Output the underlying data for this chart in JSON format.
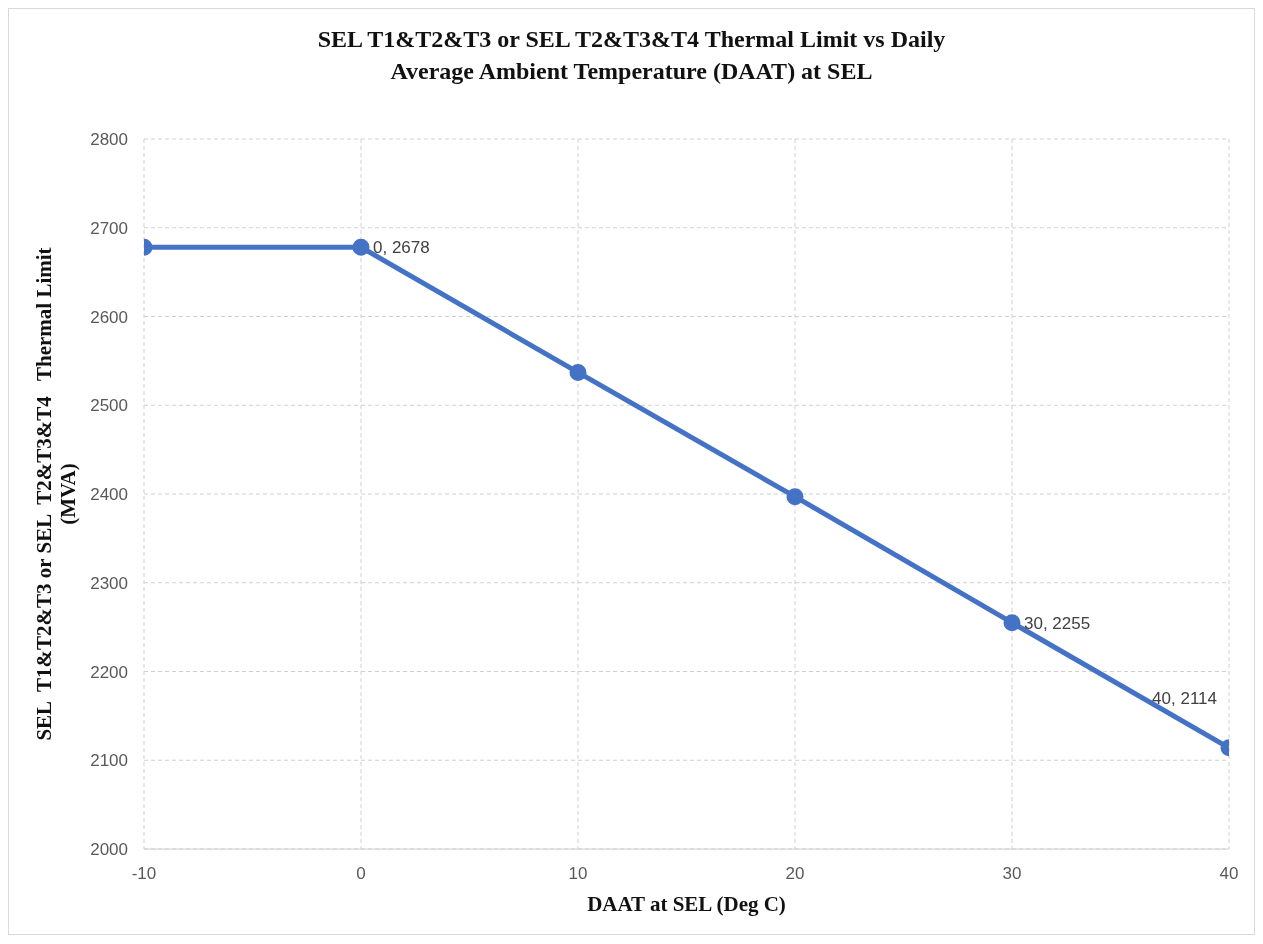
{
  "chart_data": {
    "type": "line",
    "title": "SEL T1&T2&T3 or SEL T2&T3&T4 Thermal Limit vs Daily Average Ambient Temperature (DAAT) at SEL",
    "xlabel": "DAAT at SEL (Deg C)",
    "ylabel": "SEL  T1&T2&T3 or SEL  T2&T3&T4   Thermal Limit (MVA)",
    "x": [
      -10,
      0,
      10,
      20,
      30,
      40
    ],
    "series": [
      {
        "color": "#4472c4",
        "values": [
          2678,
          2678,
          2537,
          2397,
          2255,
          2114
        ],
        "value_labels": [
          null,
          "0, 2678",
          null,
          null,
          "30, 2255",
          "40, 2114"
        ]
      }
    ],
    "xlim": [
      -10,
      40
    ],
    "xticks": [
      -10,
      0,
      10,
      20,
      30,
      40
    ],
    "ylim": [
      2000,
      2800
    ],
    "yticks": [
      2000,
      2100,
      2200,
      2300,
      2400,
      2500,
      2600,
      2700,
      2800
    ],
    "grid": true,
    "marker": "circle",
    "line_style": "solid",
    "legend": false
  }
}
